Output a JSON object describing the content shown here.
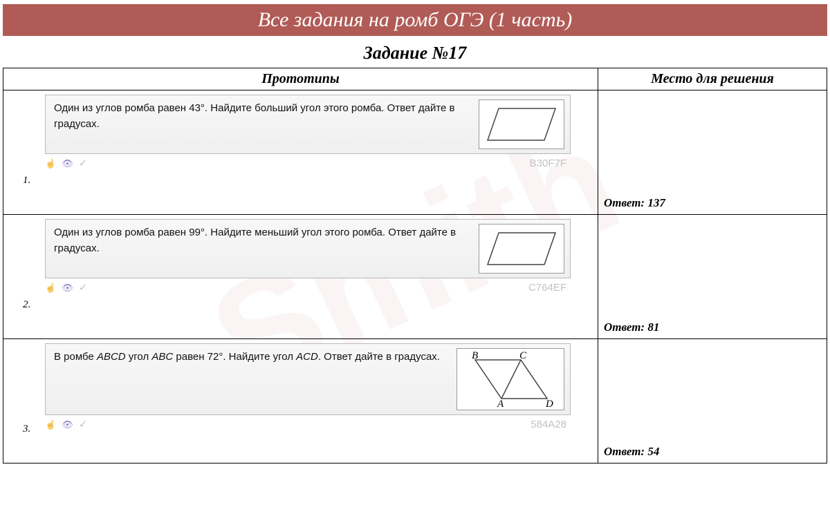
{
  "header": {
    "title": "Все задания на ромб ОГЭ (1 часть)",
    "bg_color": "#b05b56",
    "text_color": "#ffffff",
    "font_size": 30
  },
  "subtitle": "Задание №17",
  "columns": {
    "prototypes": "Прототипы",
    "solution": "Место для решения"
  },
  "problems": [
    {
      "num": "1.",
      "text": "Один из углов ромба равен 43°. Найдите больший угол этого ромба. Ответ дайте в градусах.",
      "code": "B30F7F",
      "answer_label": "Ответ:",
      "answer": "137",
      "figure": "rhombus"
    },
    {
      "num": "2.",
      "text": "Один из углов ромба равен 99°. Найдите меньший угол этого ромба. Ответ дайте в градусах.",
      "code": "C764EF",
      "answer_label": "Ответ:",
      "answer": "81",
      "figure": "rhombus"
    },
    {
      "num": "3.",
      "text_html": "В ромбе <i>ABCD</i> угол <i>ABC</i> равен 72°. Найдите угол <i>ACD</i>. Ответ дайте в градусах.",
      "code": "584A28",
      "answer_label": "Ответ:",
      "answer": "54",
      "figure": "rhombus-labeled",
      "labels": {
        "B": "B",
        "C": "C",
        "A": "A",
        "D": "D"
      }
    }
  ],
  "icons": {
    "hand": "hand-icon",
    "eye": "eye-icon",
    "check": "check-icon"
  },
  "styling": {
    "card_bg_top": "#f8f8f8",
    "card_bg_bottom": "#efefef",
    "card_border": "#b9b9b9",
    "code_color": "#c2c2c2",
    "watermark_color": "rgba(180,60,60,0.06)",
    "body_font": "Georgia, serif",
    "card_font": "Arial, sans-serif"
  }
}
